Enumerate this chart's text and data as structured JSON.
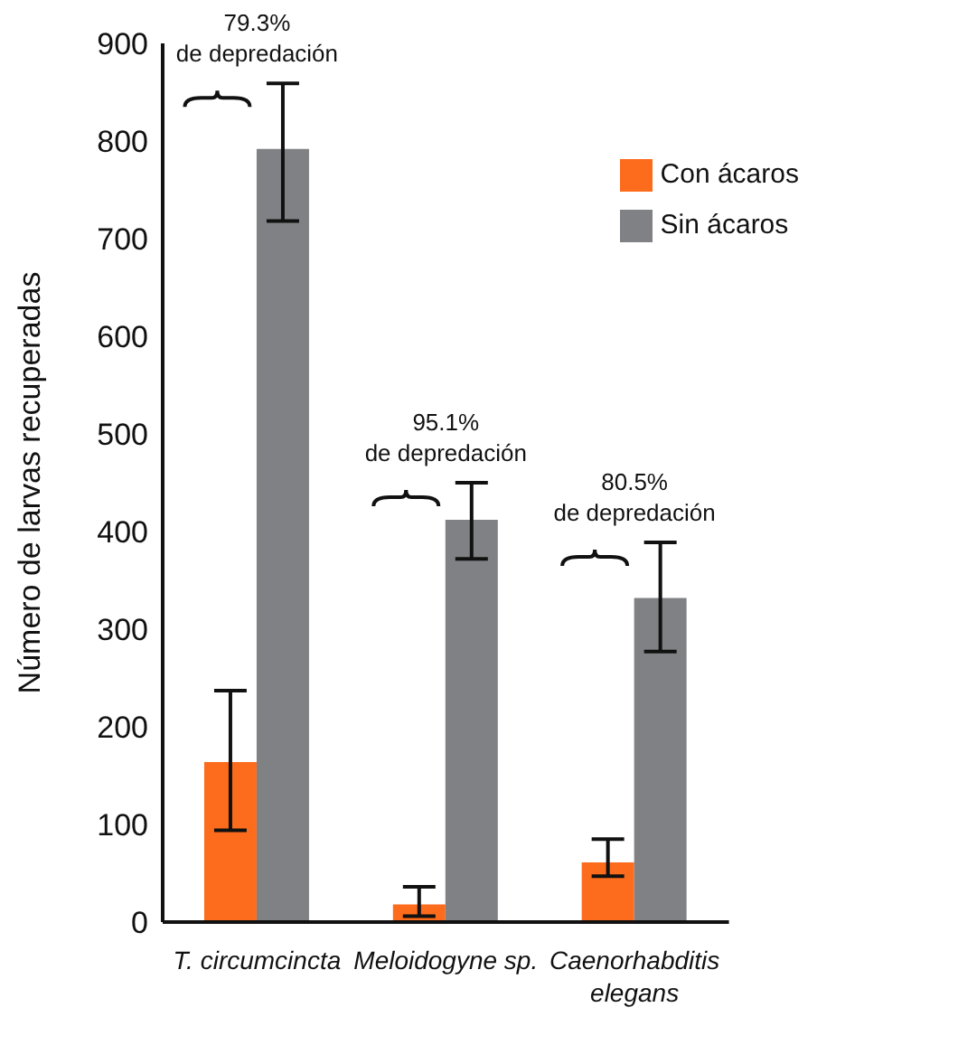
{
  "chart_data": {
    "type": "bar",
    "ylabel": "Número de larvas recuperadas",
    "categories": [
      "T. circumcincta",
      "Meloidogyne sp.",
      "Caenorhabditis elegans"
    ],
    "series": [
      {
        "name": "Con ácaros",
        "color": "#fd6b1c",
        "values": [
          164,
          18,
          61
        ],
        "errors": [
          [
            94,
            237
          ],
          [
            6,
            36
          ],
          [
            47,
            85
          ]
        ]
      },
      {
        "name": "Sin ácaros",
        "color": "#808184",
        "values": [
          792,
          412,
          332
        ],
        "errors": [
          [
            718,
            859
          ],
          [
            372,
            450
          ],
          [
            277,
            389
          ]
        ]
      }
    ],
    "ylim": [
      0,
      900
    ],
    "yticks": [
      0,
      100,
      200,
      300,
      400,
      500,
      600,
      700,
      800,
      900
    ],
    "grid": false,
    "legend": "top right",
    "annotations": [
      "79.3%\nde depredación",
      "95.1%\nde depredación",
      "80.5%\nde depredación"
    ]
  }
}
